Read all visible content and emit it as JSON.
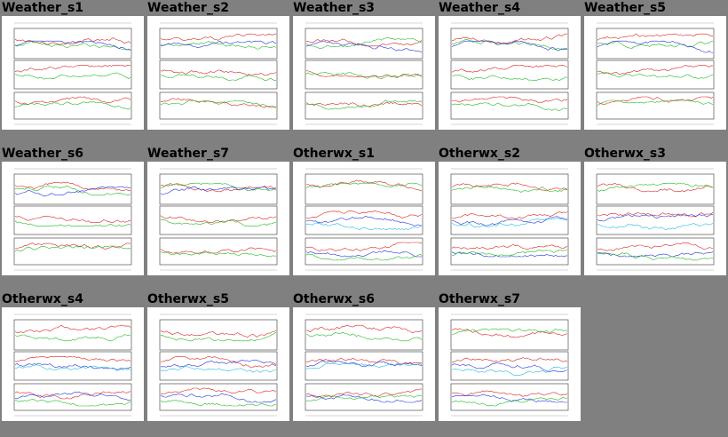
{
  "gallery": {
    "items": [
      {
        "title": "Weather_s1",
        "kind": "weather"
      },
      {
        "title": "Weather_s2",
        "kind": "weather"
      },
      {
        "title": "Weather_s3",
        "kind": "weather"
      },
      {
        "title": "Weather_s4",
        "kind": "weather"
      },
      {
        "title": "Weather_s5",
        "kind": "weather"
      },
      {
        "title": "Weather_s6",
        "kind": "weather"
      },
      {
        "title": "Weather_s7",
        "kind": "weather"
      },
      {
        "title": "Otherwx_s1",
        "kind": "otherwx"
      },
      {
        "title": "Otherwx_s2",
        "kind": "otherwx"
      },
      {
        "title": "Otherwx_s3",
        "kind": "otherwx"
      },
      {
        "title": "Otherwx_s4",
        "kind": "otherwx"
      },
      {
        "title": "Otherwx_s5",
        "kind": "otherwx"
      },
      {
        "title": "Otherwx_s6",
        "kind": "otherwx"
      },
      {
        "title": "Otherwx_s7",
        "kind": "otherwx"
      }
    ]
  },
  "colors": {
    "background": "#808080",
    "thumbnail": "#ffffff",
    "series_red": "#dd2222",
    "series_green": "#22bb22",
    "series_blue": "#2233dd",
    "series_cyan": "#22bbdd",
    "series_magenta": "#dd22dd"
  }
}
